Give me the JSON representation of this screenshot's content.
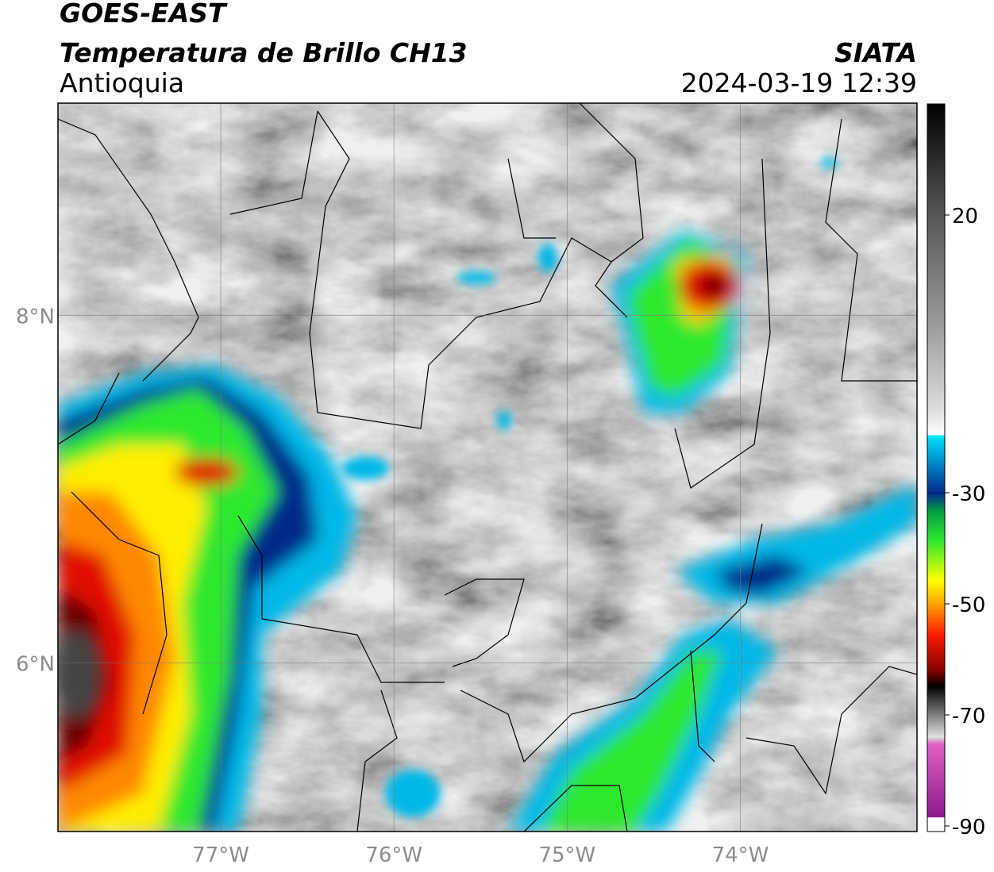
{
  "map": {
    "title": "GOES-EAST",
    "subtitle": "Temperatura de Brillo CH13",
    "region": "Antioquia",
    "source": "SIATA",
    "datetime": "2024-03-19 12:39",
    "xlim": [
      -77.94,
      -72.98
    ],
    "ylim": [
      5.03,
      9.22
    ],
    "xticks": [
      {
        "value": -77,
        "label": "77°W"
      },
      {
        "value": -76,
        "label": "76°W"
      },
      {
        "value": -75,
        "label": "75°W"
      },
      {
        "value": -74,
        "label": "74°W"
      }
    ],
    "yticks": [
      {
        "value": 8,
        "label": "8°N"
      },
      {
        "value": 6,
        "label": "6°N"
      }
    ],
    "grid": true,
    "colorbar": {
      "lim": [
        -91,
        40
      ],
      "ticks": [
        20,
        -30,
        -50,
        -70,
        -90
      ]
    }
  }
}
